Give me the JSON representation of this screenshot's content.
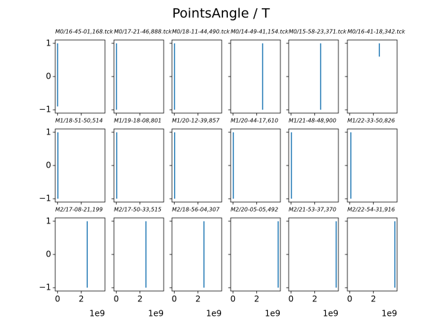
{
  "title": "PointsAngle / T",
  "chart_data": [
    {
      "type": "line",
      "title": "M0/16-45-01,168.tck",
      "x": [
        10000000,
        10000000
      ],
      "values": [
        -0.9,
        1
      ],
      "color": "#1f77b4",
      "xlim": [
        -190000000,
        3990000000
      ],
      "ylim": [
        -1.1,
        1.1
      ],
      "xticks": [
        0,
        2000000000
      ],
      "yticks": [
        {
          "value": -1,
          "label": "−1"
        },
        0,
        1
      ]
    },
    {
      "type": "line",
      "title": "M0/17-21-46,888.tck",
      "x": [
        20000000,
        20000000
      ],
      "values": [
        -1,
        1
      ],
      "color": "#1f77b4",
      "xlim": [
        -190000000,
        3990000000
      ],
      "ylim": [
        -1.1,
        1.1
      ],
      "xticks": [
        0,
        2000000000
      ],
      "yticks": [
        -1,
        0,
        1
      ]
    },
    {
      "type": "line",
      "title": "M0/18-11-44,490.tck",
      "x": [
        20000000,
        20000000
      ],
      "values": [
        -1,
        1
      ],
      "color": "#1f77b4",
      "xlim": [
        -190000000,
        3990000000
      ],
      "ylim": [
        -1.1,
        1.1
      ],
      "xticks": [
        0,
        2000000000
      ],
      "yticks": [
        -1,
        0,
        1
      ]
    },
    {
      "type": "line",
      "title": "M0/14-49-41,154.tck",
      "x": [
        2500000000,
        2500000000
      ],
      "values": [
        -1,
        1
      ],
      "color": "#1f77b4",
      "xlim": [
        -190000000,
        3990000000
      ],
      "ylim": [
        -1.1,
        1.1
      ],
      "xticks": [
        0,
        2000000000
      ],
      "yticks": [
        -1,
        0,
        1
      ]
    },
    {
      "type": "line",
      "title": "M0/15-58-23,371.tck",
      "x": [
        2500000000,
        2500000000
      ],
      "values": [
        -1,
        1
      ],
      "color": "#1f77b4",
      "xlim": [
        -190000000,
        3990000000
      ],
      "ylim": [
        -1.1,
        1.1
      ],
      "xticks": [
        0,
        2000000000
      ],
      "yticks": [
        -1,
        0,
        1
      ]
    },
    {
      "type": "line",
      "title": "M0/16-41-18,342.tck",
      "x": [
        2500000000,
        2500000000
      ],
      "values": [
        0.6,
        1
      ],
      "color": "#1f77b4",
      "xlim": [
        -190000000,
        3990000000
      ],
      "ylim": [
        -1.1,
        1.1
      ],
      "xticks": [
        0,
        2000000000
      ],
      "yticks": [
        -1,
        0,
        1
      ]
    },
    {
      "type": "line",
      "title": "M1/18-51-50,514",
      "x": [
        30000000,
        30000000
      ],
      "values": [
        -1,
        1
      ],
      "color": "#1f77b4",
      "xlim": [
        -190000000,
        3990000000
      ],
      "ylim": [
        -1.1,
        1.1
      ],
      "xticks": [
        0,
        2000000000
      ],
      "yticks": [
        {
          "value": -1,
          "label": "−1"
        },
        0,
        1
      ]
    },
    {
      "type": "line",
      "title": "M1/19-18-08,801",
      "x": [
        40000000,
        40000000
      ],
      "values": [
        -1,
        1
      ],
      "color": "#1f77b4",
      "xlim": [
        -190000000,
        3990000000
      ],
      "ylim": [
        -1.1,
        1.1
      ],
      "xticks": [
        0,
        2000000000
      ],
      "yticks": [
        -1,
        0,
        1
      ]
    },
    {
      "type": "line",
      "title": "M1/20-12-39,857",
      "x": [
        30000000,
        30000000
      ],
      "values": [
        -1,
        1
      ],
      "color": "#1f77b4",
      "xlim": [
        -190000000,
        3990000000
      ],
      "ylim": [
        -1.1,
        1.1
      ],
      "xticks": [
        0,
        2000000000
      ],
      "yticks": [
        -1,
        0,
        1
      ]
    },
    {
      "type": "line",
      "title": "M1/20-44-17,610",
      "x": [
        30000000,
        30000000
      ],
      "values": [
        -1,
        1
      ],
      "color": "#1f77b4",
      "xlim": [
        -190000000,
        3990000000
      ],
      "ylim": [
        -1.1,
        1.1
      ],
      "xticks": [
        0,
        2000000000
      ],
      "yticks": [
        -1,
        0,
        1
      ]
    },
    {
      "type": "line",
      "title": "M1/21-48-48,900",
      "x": [
        40000000,
        40000000
      ],
      "values": [
        -1,
        1
      ],
      "color": "#1f77b4",
      "xlim": [
        -190000000,
        3990000000
      ],
      "ylim": [
        -1.1,
        1.1
      ],
      "xticks": [
        0,
        2000000000
      ],
      "yticks": [
        -1,
        0,
        1
      ]
    },
    {
      "type": "line",
      "title": "M1/22-33-50,826",
      "x": [
        100000000,
        100000000
      ],
      "values": [
        -1,
        1
      ],
      "color": "#1f77b4",
      "xlim": [
        -190000000,
        3990000000
      ],
      "ylim": [
        -1.1,
        1.1
      ],
      "xticks": [
        0,
        2000000000
      ],
      "yticks": [
        -1,
        0,
        1
      ]
    },
    {
      "type": "line",
      "title": "M2/17-08-21,199",
      "x": [
        2500000000,
        2500000000
      ],
      "values": [
        -1,
        1
      ],
      "color": "#1f77b4",
      "xlim": [
        -190000000,
        3990000000
      ],
      "ylim": [
        -1.1,
        1.1
      ],
      "xticks": [
        0,
        {
          "value": 2000000000,
          "label": "2"
        }
      ],
      "x_offset": "1e9",
      "yticks": [
        {
          "value": -1,
          "label": "−1"
        },
        0,
        1
      ]
    },
    {
      "type": "line",
      "title": "M2/17-50-33,515",
      "x": [
        2500000000,
        2500000000
      ],
      "values": [
        -1,
        1
      ],
      "color": "#1f77b4",
      "xlim": [
        -190000000,
        3990000000
      ],
      "ylim": [
        -1.1,
        1.1
      ],
      "xticks": [
        0,
        {
          "value": 2000000000,
          "label": "2"
        }
      ],
      "x_offset": "1e9",
      "yticks": [
        -1,
        0,
        1
      ]
    },
    {
      "type": "line",
      "title": "M2/18-56-04,307",
      "x": [
        2500000000,
        2500000000
      ],
      "values": [
        -1,
        1
      ],
      "color": "#1f77b4",
      "xlim": [
        -190000000,
        3990000000
      ],
      "ylim": [
        -1.1,
        1.1
      ],
      "xticks": [
        0,
        {
          "value": 2000000000,
          "label": "2"
        }
      ],
      "x_offset": "1e9",
      "yticks": [
        -1,
        0,
        1
      ]
    },
    {
      "type": "line",
      "title": "M2/20-05-05,492",
      "x": [
        3800000000,
        3800000000
      ],
      "values": [
        -1,
        1
      ],
      "color": "#1f77b4",
      "xlim": [
        -190000000,
        3990000000
      ],
      "ylim": [
        -1.1,
        1.1
      ],
      "xticks": [
        0,
        {
          "value": 2000000000,
          "label": "2"
        }
      ],
      "x_offset": "1e9",
      "yticks": [
        -1,
        0,
        1
      ]
    },
    {
      "type": "line",
      "title": "M2/21-53-37,370",
      "x": [
        3800000000,
        3800000000
      ],
      "values": [
        -1,
        1
      ],
      "color": "#1f77b4",
      "xlim": [
        -190000000,
        3990000000
      ],
      "ylim": [
        -1.1,
        1.1
      ],
      "xticks": [
        0,
        {
          "value": 2000000000,
          "label": "2"
        }
      ],
      "x_offset": "1e9",
      "yticks": [
        -1,
        0,
        1
      ]
    },
    {
      "type": "line",
      "title": "M2/22-54-31,916",
      "x": [
        3800000000,
        3800000000
      ],
      "values": [
        -1,
        1
      ],
      "color": "#1f77b4",
      "xlim": [
        -190000000,
        3990000000
      ],
      "ylim": [
        -1.1,
        1.1
      ],
      "xticks": [
        0,
        {
          "value": 2000000000,
          "label": "2"
        }
      ],
      "x_offset": "1e9",
      "yticks": [
        -1,
        0,
        1
      ]
    }
  ]
}
